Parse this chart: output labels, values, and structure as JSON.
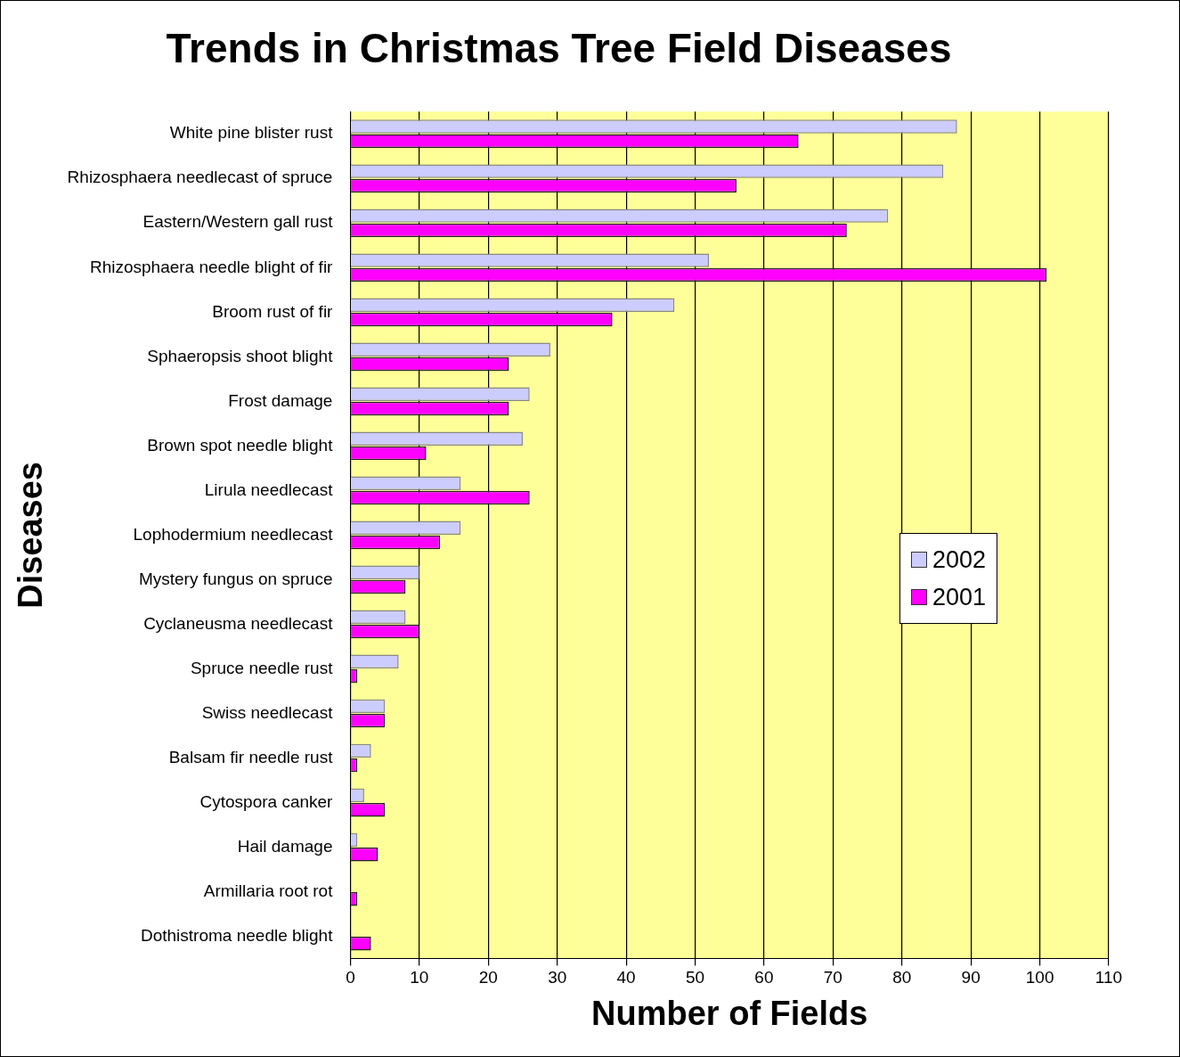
{
  "chart_data": {
    "type": "bar",
    "orientation": "horizontal",
    "title": "Trends in Christmas Tree Field Diseases",
    "xlabel": "Number of Fields",
    "ylabel": "Diseases",
    "categories": [
      "White pine blister rust",
      "Rhizosphaera needlecast of spruce",
      "Eastern/Western gall rust",
      "Rhizosphaera needle blight of fir",
      "Broom rust of fir",
      "Sphaeropsis shoot blight",
      "Frost damage",
      "Brown spot needle blight",
      "Lirula needlecast",
      "Lophodermium needlecast",
      "Mystery fungus on spruce",
      "Cyclaneusma needlecast",
      "Spruce needle rust",
      "Swiss needlecast",
      "Balsam fir needle rust",
      "Cytospora canker",
      "Hail damage",
      "Armillaria root rot",
      "Dothistroma needle blight"
    ],
    "series": [
      {
        "name": "2002",
        "color": "#ccccff",
        "values": [
          88,
          86,
          78,
          52,
          47,
          29,
          26,
          25,
          16,
          16,
          10,
          8,
          7,
          5,
          3,
          2,
          1,
          0,
          0
        ]
      },
      {
        "name": "2001",
        "color": "#ff00ff",
        "values": [
          65,
          56,
          72,
          101,
          38,
          23,
          23,
          11,
          26,
          13,
          8,
          10,
          1,
          5,
          1,
          5,
          4,
          1,
          3
        ]
      }
    ],
    "xlim": [
      0,
      110
    ],
    "xticks": [
      0,
      10,
      20,
      30,
      40,
      50,
      60,
      70,
      80,
      90,
      100,
      110
    ],
    "grid": "x",
    "legend": "right"
  }
}
